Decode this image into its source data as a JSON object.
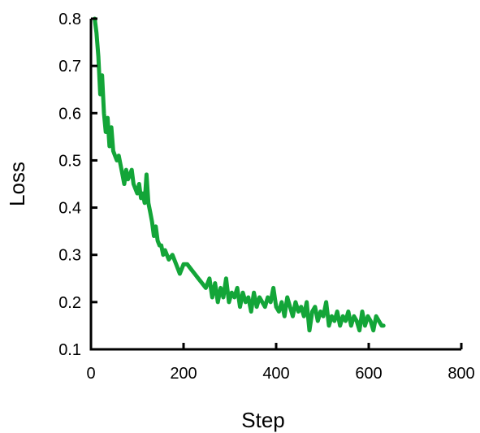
{
  "chart_data": {
    "type": "line",
    "title": "",
    "xlabel": "Step",
    "ylabel": "Loss",
    "xlim": [
      0,
      800
    ],
    "ylim": [
      0.1,
      0.8
    ],
    "x_ticks": [
      "0",
      "200",
      "400",
      "600",
      "800"
    ],
    "y_ticks": [
      "0.1",
      "0.2",
      "0.3",
      "0.4",
      "0.5",
      "0.6",
      "0.7",
      "0.8"
    ],
    "grid": false,
    "legend": "none",
    "series": [
      {
        "color": "#13a538",
        "x": [
          8,
          12,
          16,
          20,
          24,
          28,
          32,
          36,
          40,
          44,
          48,
          52,
          56,
          60,
          64,
          68,
          72,
          76,
          80,
          84,
          88,
          92,
          96,
          100,
          104,
          108,
          112,
          116,
          120,
          124,
          128,
          132,
          136,
          140,
          144,
          148,
          152,
          156,
          160,
          168,
          176,
          184,
          192,
          200,
          208,
          216,
          224,
          232,
          240,
          248,
          256,
          262,
          268,
          274,
          280,
          286,
          292,
          298,
          304,
          310,
          316,
          322,
          328,
          334,
          340,
          346,
          352,
          358,
          364,
          370,
          376,
          382,
          388,
          394,
          400,
          406,
          412,
          418,
          424,
          430,
          436,
          442,
          448,
          454,
          460,
          466,
          472,
          478,
          484,
          490,
          496,
          502,
          508,
          514,
          520,
          526,
          532,
          538,
          544,
          550,
          556,
          562,
          568,
          574,
          580,
          586,
          592,
          598,
          604,
          610,
          616,
          622,
          628,
          632
        ],
        "y": [
          0.8,
          0.77,
          0.72,
          0.64,
          0.68,
          0.6,
          0.56,
          0.59,
          0.53,
          0.57,
          0.52,
          0.51,
          0.5,
          0.51,
          0.49,
          0.47,
          0.45,
          0.48,
          0.46,
          0.47,
          0.48,
          0.45,
          0.44,
          0.43,
          0.45,
          0.42,
          0.43,
          0.41,
          0.47,
          0.41,
          0.39,
          0.37,
          0.34,
          0.36,
          0.33,
          0.32,
          0.32,
          0.3,
          0.31,
          0.29,
          0.3,
          0.28,
          0.26,
          0.28,
          0.28,
          0.27,
          0.26,
          0.25,
          0.24,
          0.23,
          0.25,
          0.21,
          0.24,
          0.2,
          0.23,
          0.21,
          0.25,
          0.2,
          0.22,
          0.21,
          0.23,
          0.19,
          0.22,
          0.2,
          0.21,
          0.18,
          0.22,
          0.19,
          0.21,
          0.2,
          0.19,
          0.21,
          0.2,
          0.23,
          0.19,
          0.18,
          0.2,
          0.17,
          0.21,
          0.19,
          0.17,
          0.2,
          0.18,
          0.19,
          0.17,
          0.2,
          0.14,
          0.18,
          0.19,
          0.16,
          0.18,
          0.17,
          0.2,
          0.15,
          0.17,
          0.16,
          0.18,
          0.15,
          0.17,
          0.16,
          0.18,
          0.15,
          0.17,
          0.16,
          0.14,
          0.18,
          0.15,
          0.17,
          0.16,
          0.14,
          0.17,
          0.16,
          0.15,
          0.15
        ]
      }
    ]
  }
}
